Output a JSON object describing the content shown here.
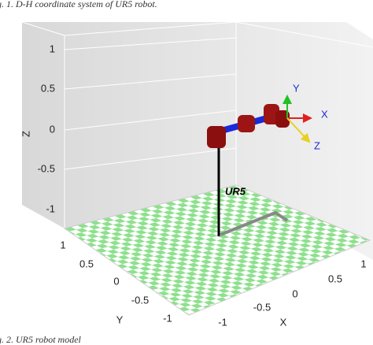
{
  "caption_top": "g. 1. D-H coordinate system of UR5 robot.",
  "caption_bottom": "g. 2. UR5 robot model",
  "plot": {
    "z_axis": {
      "label": "Z",
      "ticks": [
        "1",
        "0.5",
        "0",
        "-0.5",
        "-1"
      ]
    },
    "y_axis": {
      "label": "Y",
      "ticks": [
        "1",
        "0.5",
        "0",
        "-0.5",
        "-1"
      ]
    },
    "x_axis": {
      "label": "X",
      "ticks": [
        "-1",
        "-0.5",
        "0",
        "0.5",
        "1"
      ]
    },
    "robot_label": "UR5",
    "frame_labels": [
      "X",
      "Y",
      "Z"
    ]
  }
}
